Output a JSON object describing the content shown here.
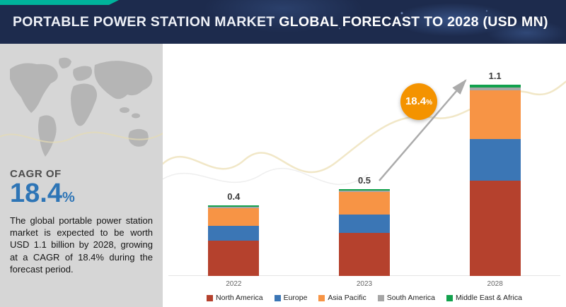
{
  "header": {
    "title_part1": "PORTABLE POWER STATION MARKET",
    "title_part2": "GLOBAL FORECAST TO 2028 (USD MN)"
  },
  "sidebar": {
    "cagr_label": "CAGR OF",
    "cagr_value": "18.4",
    "cagr_unit": "%",
    "description": "The global portable power station market is expected to be worth USD 1.1 billion by 2028, growing at a CAGR of 18.4% during the forecast period."
  },
  "chart_data": {
    "type": "bar",
    "stacked": true,
    "title": "PORTABLE POWER STATION MARKET GLOBAL FORECAST TO 2028 (USD MN)",
    "categories": [
      "2022",
      "2023",
      "2028"
    ],
    "totals": [
      "0.4",
      "0.5",
      "1.1"
    ],
    "series": [
      {
        "name": "North America",
        "color": "#b5412d",
        "values": [
          0.205,
          0.25,
          0.55
        ]
      },
      {
        "name": "Europe",
        "color": "#3b76b5",
        "values": [
          0.085,
          0.105,
          0.24
        ]
      },
      {
        "name": "Asia Pacific",
        "color": "#f79445",
        "values": [
          0.1,
          0.13,
          0.28
        ]
      },
      {
        "name": "South America",
        "color": "#a6a6a6",
        "values": [
          0.005,
          0.0075,
          0.015
        ]
      },
      {
        "name": "Middle East & Africa",
        "color": "#12a14d",
        "values": [
          0.005,
          0.0075,
          0.015
        ]
      }
    ],
    "growth_value": "18.4",
    "growth_unit": "%",
    "legend_position": "bottom",
    "grid": false
  },
  "colors": {
    "header_bg": "#1d2b4d",
    "accent_teal": "#00b39b",
    "cagr_blue": "#2e75b6",
    "badge_orange": "#f49300",
    "sidebar_bg": "#d6d6d6"
  }
}
